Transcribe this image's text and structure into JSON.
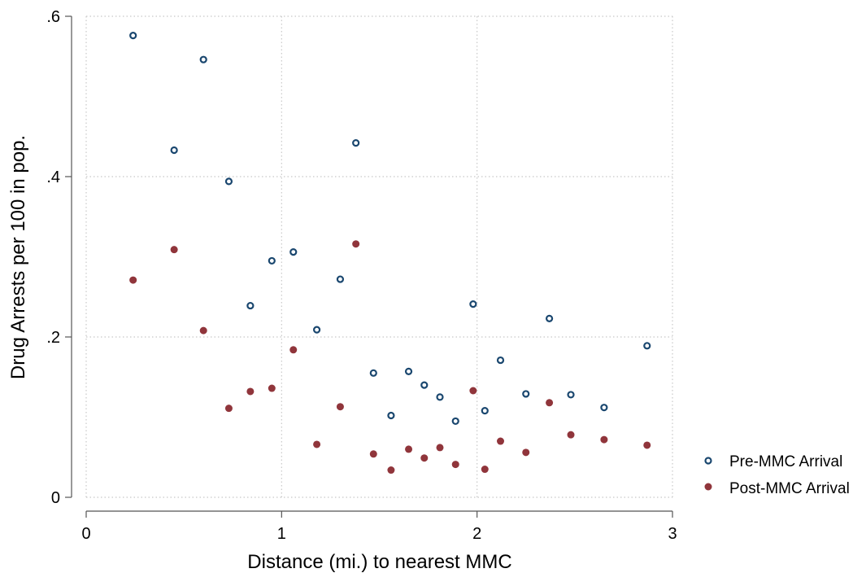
{
  "chart_data": {
    "type": "scatter",
    "title": "",
    "xlabel": "Distance (mi.) to nearest MMC",
    "ylabel": "Drug Arrests per 100 in pop.",
    "xlim": [
      0,
      3
    ],
    "ylim": [
      0,
      0.6
    ],
    "xticks": [
      {
        "value": 0,
        "label": "0"
      },
      {
        "value": 1,
        "label": "1"
      },
      {
        "value": 2,
        "label": "2"
      },
      {
        "value": 3,
        "label": "3"
      }
    ],
    "yticks": [
      {
        "value": 0,
        "label": "0"
      },
      {
        "value": 0.2,
        "label": ".2"
      },
      {
        "value": 0.4,
        "label": ".4"
      },
      {
        "value": 0.6,
        "label": ".6"
      }
    ],
    "grid": true,
    "legend_position": "right",
    "series": [
      {
        "name": "Pre-MMC Arrival",
        "marker": "hollow-circle",
        "color": "#1a476f",
        "points": [
          [
            0.24,
            0.576
          ],
          [
            0.45,
            0.433
          ],
          [
            0.6,
            0.546
          ],
          [
            0.73,
            0.394
          ],
          [
            0.84,
            0.239
          ],
          [
            0.95,
            0.295
          ],
          [
            1.06,
            0.306
          ],
          [
            1.18,
            0.209
          ],
          [
            1.3,
            0.272
          ],
          [
            1.38,
            0.442
          ],
          [
            1.47,
            0.155
          ],
          [
            1.56,
            0.102
          ],
          [
            1.65,
            0.157
          ],
          [
            1.73,
            0.14
          ],
          [
            1.81,
            0.125
          ],
          [
            1.89,
            0.095
          ],
          [
            1.98,
            0.241
          ],
          [
            2.04,
            0.108
          ],
          [
            2.12,
            0.171
          ],
          [
            2.25,
            0.129
          ],
          [
            2.37,
            0.223
          ],
          [
            2.48,
            0.128
          ],
          [
            2.65,
            0.112
          ],
          [
            2.87,
            0.189
          ]
        ]
      },
      {
        "name": "Post-MMC Arrival",
        "marker": "filled-circle",
        "color": "#90353b",
        "points": [
          [
            0.24,
            0.271
          ],
          [
            0.45,
            0.309
          ],
          [
            0.6,
            0.208
          ],
          [
            0.73,
            0.111
          ],
          [
            0.84,
            0.132
          ],
          [
            0.95,
            0.136
          ],
          [
            1.06,
            0.184
          ],
          [
            1.18,
            0.066
          ],
          [
            1.3,
            0.113
          ],
          [
            1.38,
            0.316
          ],
          [
            1.47,
            0.054
          ],
          [
            1.56,
            0.034
          ],
          [
            1.65,
            0.06
          ],
          [
            1.73,
            0.049
          ],
          [
            1.81,
            0.062
          ],
          [
            1.89,
            0.041
          ],
          [
            1.98,
            0.133
          ],
          [
            2.04,
            0.035
          ],
          [
            2.12,
            0.07
          ],
          [
            2.25,
            0.056
          ],
          [
            2.37,
            0.118
          ],
          [
            2.48,
            0.078
          ],
          [
            2.65,
            0.072
          ],
          [
            2.87,
            0.065
          ]
        ]
      }
    ]
  }
}
